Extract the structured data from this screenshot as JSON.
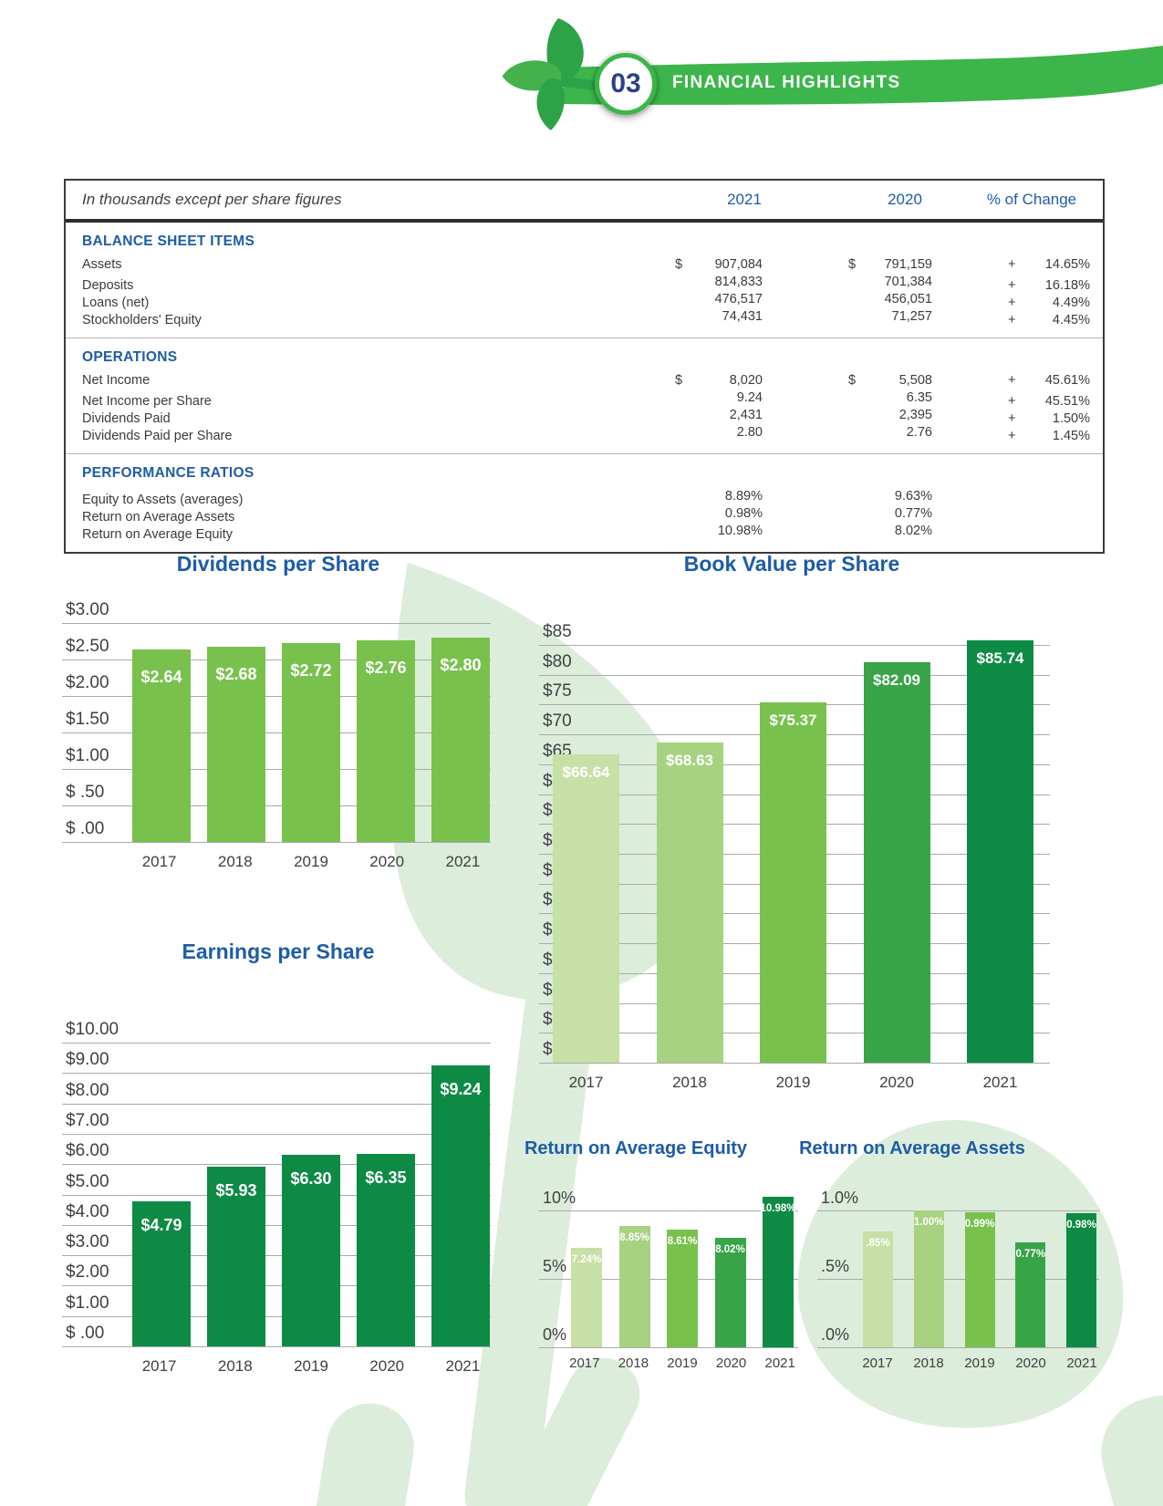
{
  "header": {
    "section_number": "03",
    "section_title": "FINANCIAL HIGHLIGHTS"
  },
  "table": {
    "caption": "In thousands except per share figures",
    "col_headers": [
      "2021",
      "2020",
      "% of Change"
    ],
    "sections": [
      {
        "title": "BALANCE SHEET ITEMS",
        "rows": [
          {
            "label": "Assets",
            "d1": "$",
            "v1": "907,084",
            "d2": "$",
            "v2": "791,159",
            "sign": "+",
            "chg": "14.65%"
          },
          {
            "label": "Deposits",
            "d1": "",
            "v1": "814,833",
            "d2": "",
            "v2": "701,384",
            "sign": "+",
            "chg": "16.18%"
          },
          {
            "label": "Loans (net)",
            "d1": "",
            "v1": "476,517",
            "d2": "",
            "v2": "456,051",
            "sign": "+",
            "chg": "4.49%"
          },
          {
            "label": "Stockholders' Equity",
            "d1": "",
            "v1": "74,431",
            "d2": "",
            "v2": "71,257",
            "sign": "+",
            "chg": "4.45%"
          }
        ]
      },
      {
        "title": "OPERATIONS",
        "rows": [
          {
            "label": "Net Income",
            "d1": "$",
            "v1": "8,020",
            "d2": "$",
            "v2": "5,508",
            "sign": "+",
            "chg": "45.61%"
          },
          {
            "label": "Net Income per Share",
            "d1": "",
            "v1": "9.24",
            "d2": "",
            "v2": "6.35",
            "sign": "+",
            "chg": "45.51%"
          },
          {
            "label": "Dividends Paid",
            "d1": "",
            "v1": "2,431",
            "d2": "",
            "v2": "2,395",
            "sign": "+",
            "chg": "1.50%"
          },
          {
            "label": "Dividends Paid per Share",
            "d1": "",
            "v1": "2.80",
            "d2": "",
            "v2": "2.76",
            "sign": "+",
            "chg": "1.45%"
          }
        ]
      },
      {
        "title": "PERFORMANCE RATIOS",
        "rows": [
          {
            "label": "Equity to Assets (averages)",
            "d1": "",
            "v1": "8.89%",
            "d2": "",
            "v2": "9.63%",
            "sign": "",
            "chg": ""
          },
          {
            "label": "Return on Average Assets",
            "d1": "",
            "v1": "0.98%",
            "d2": "",
            "v2": "0.77%",
            "sign": "",
            "chg": ""
          },
          {
            "label": "Return on Average Equity",
            "d1": "",
            "v1": "10.98%",
            "d2": "",
            "v2": "8.02%",
            "sign": "",
            "chg": ""
          }
        ]
      }
    ]
  },
  "colors": {
    "banner_green": "#3cb54a",
    "title_blue": "#1d5ca8",
    "number_navy": "#2c3f8c",
    "grid_gray": "#a7abab",
    "text_gray": "#3d4143",
    "watermark_green": "#ddeddb",
    "bar_palette": [
      "#c7e0a5",
      "#a6d281",
      "#79c14d",
      "#39a348",
      "#0d8b45"
    ]
  },
  "chart_data": [
    {
      "id": "dividends",
      "type": "bar",
      "title": "Dividends per Share",
      "categories": [
        "2017",
        "2018",
        "2019",
        "2020",
        "2021"
      ],
      "values": [
        2.64,
        2.68,
        2.72,
        2.76,
        2.8
      ],
      "bar_labels": [
        "$2.64",
        "$2.68",
        "$2.72",
        "$2.76",
        "$2.80"
      ],
      "y_ticks": [
        "$3.00",
        "$2.50",
        "$2.00",
        "$1.50",
        "$1.00",
        "$ .50",
        "$ .00"
      ],
      "y_min": 0,
      "y_max": 3,
      "grid": true,
      "legend": "none",
      "bar_colors": [
        "#79c14d",
        "#79c14d",
        "#79c14d",
        "#79c14d",
        "#79c14d"
      ]
    },
    {
      "id": "book_value",
      "type": "bar",
      "title": "Book Value per Share",
      "categories": [
        "2017",
        "2018",
        "2019",
        "2020",
        "2021"
      ],
      "values": [
        66.64,
        68.63,
        75.37,
        82.09,
        85.74
      ],
      "bar_labels": [
        "$66.64",
        "$68.63",
        "$75.37",
        "$82.09",
        "$85.74"
      ],
      "y_ticks": [
        "$85",
        "$80",
        "$75",
        "$70",
        "$65",
        "$60",
        "$55",
        "$50",
        "$45",
        "$40",
        "$35",
        "$30",
        "$25",
        "$20",
        "$15"
      ],
      "y_min": 15,
      "y_max": 85,
      "grid": true,
      "legend": "none",
      "bar_colors": [
        "#c7e0a5",
        "#a6d281",
        "#79c14d",
        "#39a348",
        "#0d8b45"
      ]
    },
    {
      "id": "eps",
      "type": "bar",
      "title": "Earnings per Share",
      "categories": [
        "2017",
        "2018",
        "2019",
        "2020",
        "2021"
      ],
      "values": [
        4.79,
        5.93,
        6.3,
        6.35,
        9.24
      ],
      "bar_labels": [
        "$4.79",
        "$5.93",
        "$6.30",
        "$6.35",
        "$9.24"
      ],
      "y_ticks": [
        "$10.00",
        "$9.00",
        "$8.00",
        "$7.00",
        "$6.00",
        "$5.00",
        "$4.00",
        "$3.00",
        "$2.00",
        "$1.00",
        "$ .00"
      ],
      "y_min": 0,
      "y_max": 10,
      "grid": true,
      "legend": "none",
      "bar_colors": [
        "#0d8b45",
        "#0d8b45",
        "#0d8b45",
        "#0d8b45",
        "#0d8b45"
      ]
    },
    {
      "id": "roe",
      "type": "bar",
      "title": "Return on Average Equity",
      "categories": [
        "2017",
        "2018",
        "2019",
        "2020",
        "2021"
      ],
      "values": [
        7.24,
        8.85,
        8.61,
        8.02,
        10.98
      ],
      "bar_labels": [
        "7.24%",
        "8.85%",
        "8.61%",
        "8.02%",
        "10.98%"
      ],
      "y_ticks": [
        "10%",
        "5%",
        "0%"
      ],
      "y_min": 0,
      "y_max": 10,
      "grid": true,
      "legend": "none",
      "bar_colors": [
        "#c7e0a5",
        "#a6d281",
        "#79c14d",
        "#39a348",
        "#0d8b45"
      ]
    },
    {
      "id": "roa",
      "type": "bar",
      "title": "Return on Average Assets",
      "categories": [
        "2017",
        "2018",
        "2019",
        "2020",
        "2021"
      ],
      "values": [
        0.85,
        1.0,
        0.99,
        0.77,
        0.98
      ],
      "bar_labels": [
        ".85%",
        "1.00%",
        "0.99%",
        "0.77%",
        "0.98%"
      ],
      "y_ticks": [
        "1.0%",
        ".5%",
        ".0%"
      ],
      "y_min": 0,
      "y_max": 1,
      "grid": true,
      "legend": "none",
      "bar_colors": [
        "#c7e0a5",
        "#a6d281",
        "#79c14d",
        "#39a348",
        "#0d8b45"
      ]
    }
  ]
}
